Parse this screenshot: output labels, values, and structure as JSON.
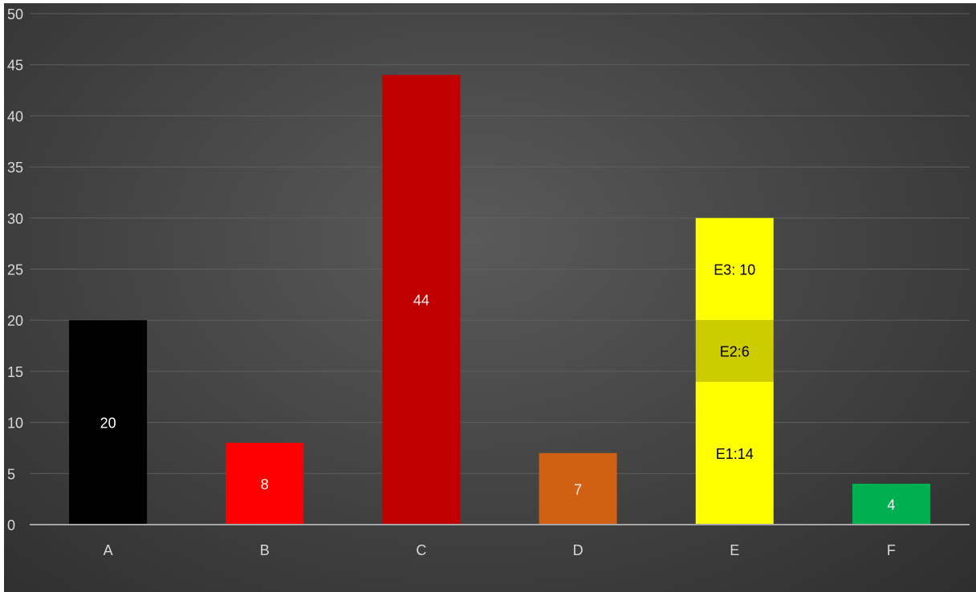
{
  "chart_data": {
    "type": "bar",
    "title": "",
    "xlabel": "",
    "ylabel": "",
    "ylim": [
      0,
      50
    ],
    "yticks": [
      0,
      5,
      10,
      15,
      20,
      25,
      30,
      35,
      40,
      45,
      50
    ],
    "grid": true,
    "legend": "none",
    "categories": [
      "A",
      "B",
      "C",
      "D",
      "E",
      "F"
    ],
    "bars": [
      {
        "category": "A",
        "segments": [
          {
            "value": 20,
            "label": "20",
            "color": "#000000",
            "label_color": "#ffffff"
          }
        ]
      },
      {
        "category": "B",
        "segments": [
          {
            "value": 8,
            "label": "8",
            "color": "#ff0000",
            "label_color": "#f2f2f2"
          }
        ]
      },
      {
        "category": "C",
        "segments": [
          {
            "value": 44,
            "label": "44",
            "color": "#c00000",
            "label_color": "#f2f2f2"
          }
        ]
      },
      {
        "category": "D",
        "segments": [
          {
            "value": 7,
            "label": "7",
            "color": "#d06012",
            "label_color": "#f2f2f2"
          }
        ]
      },
      {
        "category": "E",
        "segments": [
          {
            "value": 14,
            "label": "E1:14",
            "color": "#ffff00",
            "label_color": "#000000"
          },
          {
            "value": 6,
            "label": "E2:6",
            "color": "#cccc00",
            "label_color": "#000000"
          },
          {
            "value": 10,
            "label": "E3: 10",
            "color": "#ffff00",
            "label_color": "#000000"
          }
        ]
      },
      {
        "category": "F",
        "segments": [
          {
            "value": 4,
            "label": "4",
            "color": "#00b050",
            "label_color": "#f2f2f2"
          }
        ]
      }
    ],
    "colors": {
      "background": "#3a3a3a",
      "gridline": "#5f5f5f",
      "axis": "#a6a6a6",
      "text": "#d9d9d9"
    }
  }
}
